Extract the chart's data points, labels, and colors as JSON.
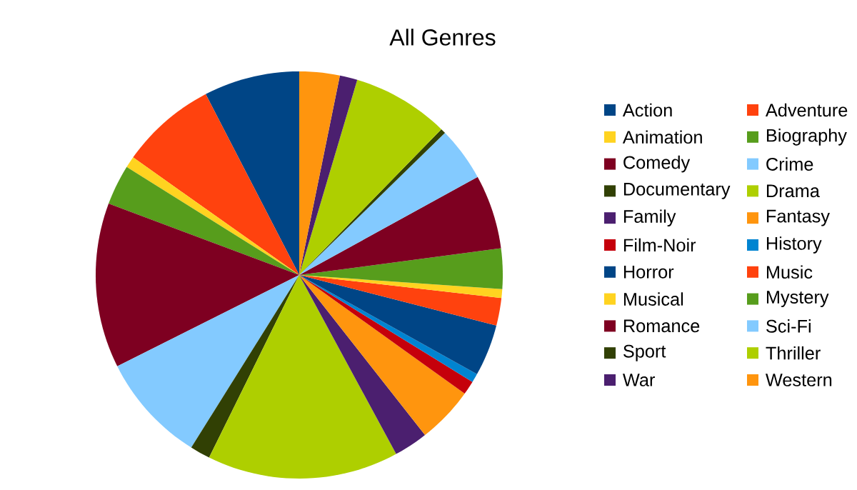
{
  "chart_data": {
    "type": "pie",
    "title": "All Genres",
    "categories": [
      "Action",
      "Adventure",
      "Animation",
      "Biography",
      "Comedy",
      "Crime",
      "Documentary",
      "Drama",
      "Family",
      "Fantasy",
      "Film-Noir",
      "History",
      "Horror",
      "Music",
      "Musical",
      "Mystery",
      "Romance",
      "Sci-Fi",
      "Sport",
      "Thriller",
      "War",
      "Western"
    ],
    "values": [
      7.6,
      7.6,
      0.9,
      3.2,
      13.1,
      8.7,
      1.6,
      15.2,
      2.7,
      4.5,
      1.1,
      0.7,
      4.1,
      2.2,
      0.7,
      3.2,
      5.9,
      4.3,
      0.4,
      7.7,
      1.4,
      3.2
    ],
    "colors": [
      "#004586",
      "#ff420e",
      "#ffd320",
      "#579d1c",
      "#7e0021",
      "#83caff",
      "#314004",
      "#aecf00",
      "#4b1f6f",
      "#ff950e",
      "#c5000b",
      "#0084d1",
      "#004586",
      "#ff420e",
      "#ffd320",
      "#579d1c",
      "#7e0021",
      "#83caff",
      "#314004",
      "#aecf00",
      "#4b1f6f",
      "#ff950e"
    ],
    "legend": "right"
  }
}
